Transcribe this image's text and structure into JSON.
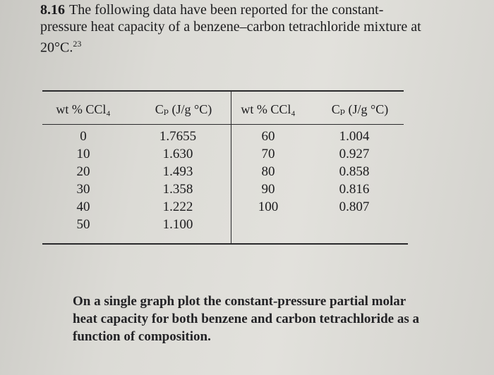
{
  "problem": {
    "number": "8.16",
    "text": "The following data have been reported for the constant-pressure heat capacity of a benzene–carbon tetrachloride mixture at 20°C.",
    "footnote": "23"
  },
  "table": {
    "headers": [
      "wt % CCl₄",
      "Cₚ (J/g °C)",
      "wt % CCl₄",
      "Cₚ (J/g °C)"
    ],
    "rows": [
      [
        "0",
        "1.7655",
        "60",
        "1.004"
      ],
      [
        "10",
        "1.630",
        "70",
        "0.927"
      ],
      [
        "20",
        "1.493",
        "80",
        "0.858"
      ],
      [
        "30",
        "1.358",
        "90",
        "0.816"
      ],
      [
        "40",
        "1.222",
        "100",
        "0.807"
      ],
      [
        "50",
        "1.100"
      ]
    ]
  },
  "instruction": "On a single graph plot the constant-pressure partial molar heat capacity for both benzene and carbon tetrachloride as a function of composition."
}
